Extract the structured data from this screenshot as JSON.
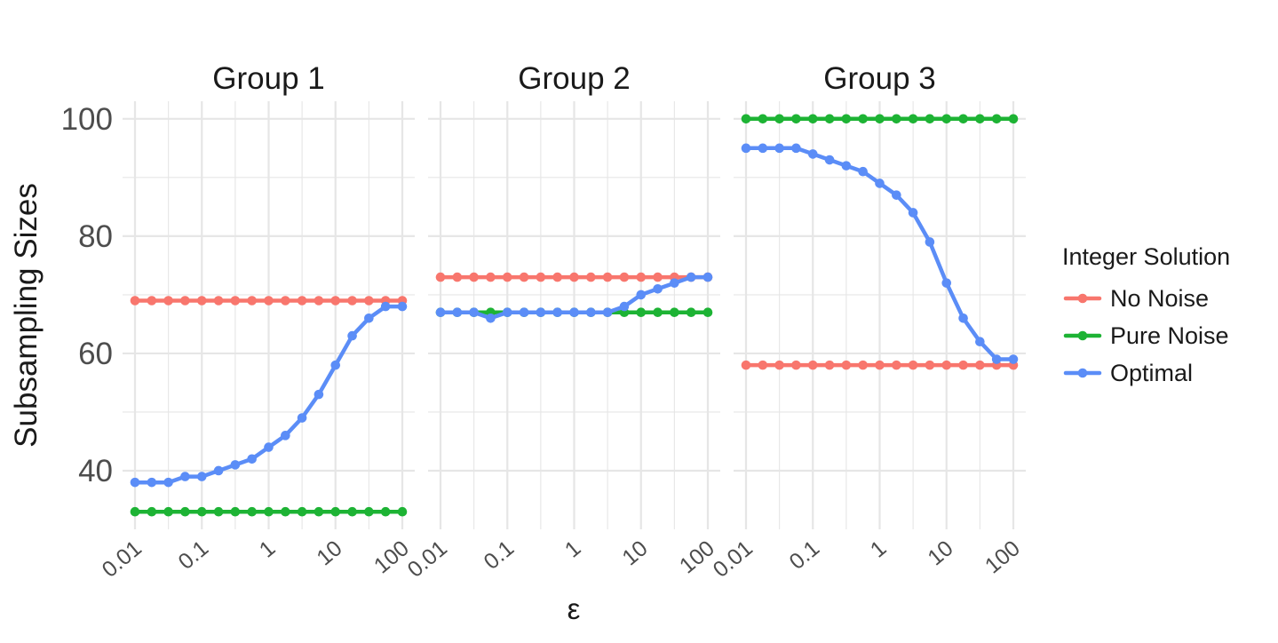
{
  "chart_data": {
    "type": "line",
    "facets": [
      "Group 1",
      "Group 2",
      "Group 3"
    ],
    "xlabel": "ε",
    "ylabel": "Subsampling Sizes",
    "x_scale": "log10",
    "xlim": [
      0.01,
      100
    ],
    "ylim": [
      30,
      103
    ],
    "x_ticks": [
      0.01,
      0.1,
      1,
      10,
      100
    ],
    "x_tick_labels": [
      "0.01",
      "0.1",
      "1",
      "10",
      "100"
    ],
    "y_ticks": [
      40,
      60,
      80,
      100
    ],
    "y_tick_labels": [
      "40",
      "60",
      "80",
      "100"
    ],
    "grid": true,
    "legend": {
      "title": "Integer Solution",
      "position": "right",
      "entries": [
        "No Noise",
        "Pure Noise",
        "Optimal"
      ]
    },
    "colors": {
      "No Noise": "#F8766D",
      "Pure Noise": "#1DB334",
      "Optimal": "#5B8DF7"
    },
    "x": [
      0.01,
      0.0178,
      0.0316,
      0.0562,
      0.1,
      0.178,
      0.316,
      0.562,
      1,
      1.78,
      3.16,
      5.62,
      10,
      17.8,
      31.6,
      56.2,
      100
    ],
    "series": [
      {
        "name": "No Noise",
        "facet": "Group 1",
        "values": [
          69,
          69,
          69,
          69,
          69,
          69,
          69,
          69,
          69,
          69,
          69,
          69,
          69,
          69,
          69,
          69,
          69
        ]
      },
      {
        "name": "Pure Noise",
        "facet": "Group 1",
        "values": [
          33,
          33,
          33,
          33,
          33,
          33,
          33,
          33,
          33,
          33,
          33,
          33,
          33,
          33,
          33,
          33,
          33
        ]
      },
      {
        "name": "Optimal",
        "facet": "Group 1",
        "values": [
          38,
          38,
          38,
          39,
          39,
          40,
          41,
          42,
          44,
          46,
          49,
          53,
          58,
          63,
          66,
          68,
          68
        ]
      },
      {
        "name": "No Noise",
        "facet": "Group 2",
        "values": [
          73,
          73,
          73,
          73,
          73,
          73,
          73,
          73,
          73,
          73,
          73,
          73,
          73,
          73,
          73,
          73,
          73
        ]
      },
      {
        "name": "Pure Noise",
        "facet": "Group 2",
        "values": [
          67,
          67,
          67,
          67,
          67,
          67,
          67,
          67,
          67,
          67,
          67,
          67,
          67,
          67,
          67,
          67,
          67
        ]
      },
      {
        "name": "Optimal",
        "facet": "Group 2",
        "values": [
          67,
          67,
          67,
          66,
          67,
          67,
          67,
          67,
          67,
          67,
          67,
          68,
          70,
          71,
          72,
          73,
          73
        ]
      },
      {
        "name": "No Noise",
        "facet": "Group 3",
        "values": [
          58,
          58,
          58,
          58,
          58,
          58,
          58,
          58,
          58,
          58,
          58,
          58,
          58,
          58,
          58,
          58,
          58
        ]
      },
      {
        "name": "Pure Noise",
        "facet": "Group 3",
        "values": [
          100,
          100,
          100,
          100,
          100,
          100,
          100,
          100,
          100,
          100,
          100,
          100,
          100,
          100,
          100,
          100,
          100
        ]
      },
      {
        "name": "Optimal",
        "facet": "Group 3",
        "values": [
          95,
          95,
          95,
          95,
          94,
          93,
          92,
          91,
          89,
          87,
          84,
          79,
          72,
          66,
          62,
          59,
          59
        ]
      }
    ]
  }
}
